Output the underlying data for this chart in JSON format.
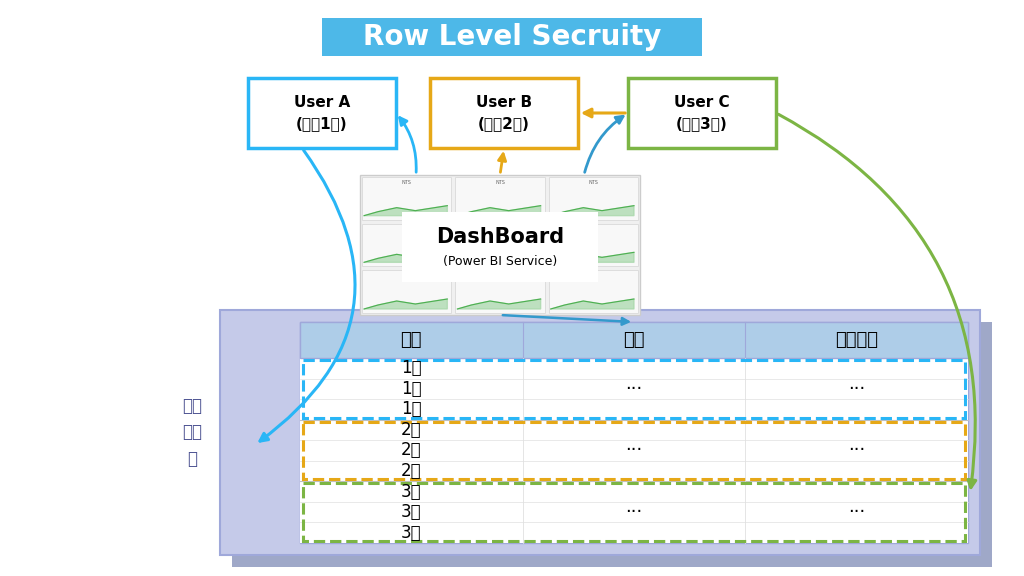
{
  "title": "Row Level Secruity",
  "title_bg": "#4db8e8",
  "title_color": "white",
  "user_a_label": "User A\n(業刖1部)",
  "user_b_label": "User B\n(業刖2部)",
  "user_c_label": "User C\n(業刖3部)",
  "user_a_box_color": "#29b6f6",
  "user_b_box_color": "#e6a817",
  "user_c_box_color": "#7cb544",
  "table_header": [
    "部門",
    "日期",
    "銷貨金額"
  ],
  "table_rows_1": [
    "1部",
    "1部",
    "1部"
  ],
  "table_rows_2": [
    "2部",
    "2部",
    "2部"
  ],
  "table_rows_3": [
    "3部",
    "3部",
    "3部"
  ],
  "bg_color": "white",
  "table_outer_bg": "#b8bfe8",
  "table_header_bg": "#a8c8e8",
  "row1_border": "#29b6f6",
  "row2_border": "#e6a817",
  "row3_border": "#7cb544",
  "datasource_label": "底層\n資料\n源"
}
